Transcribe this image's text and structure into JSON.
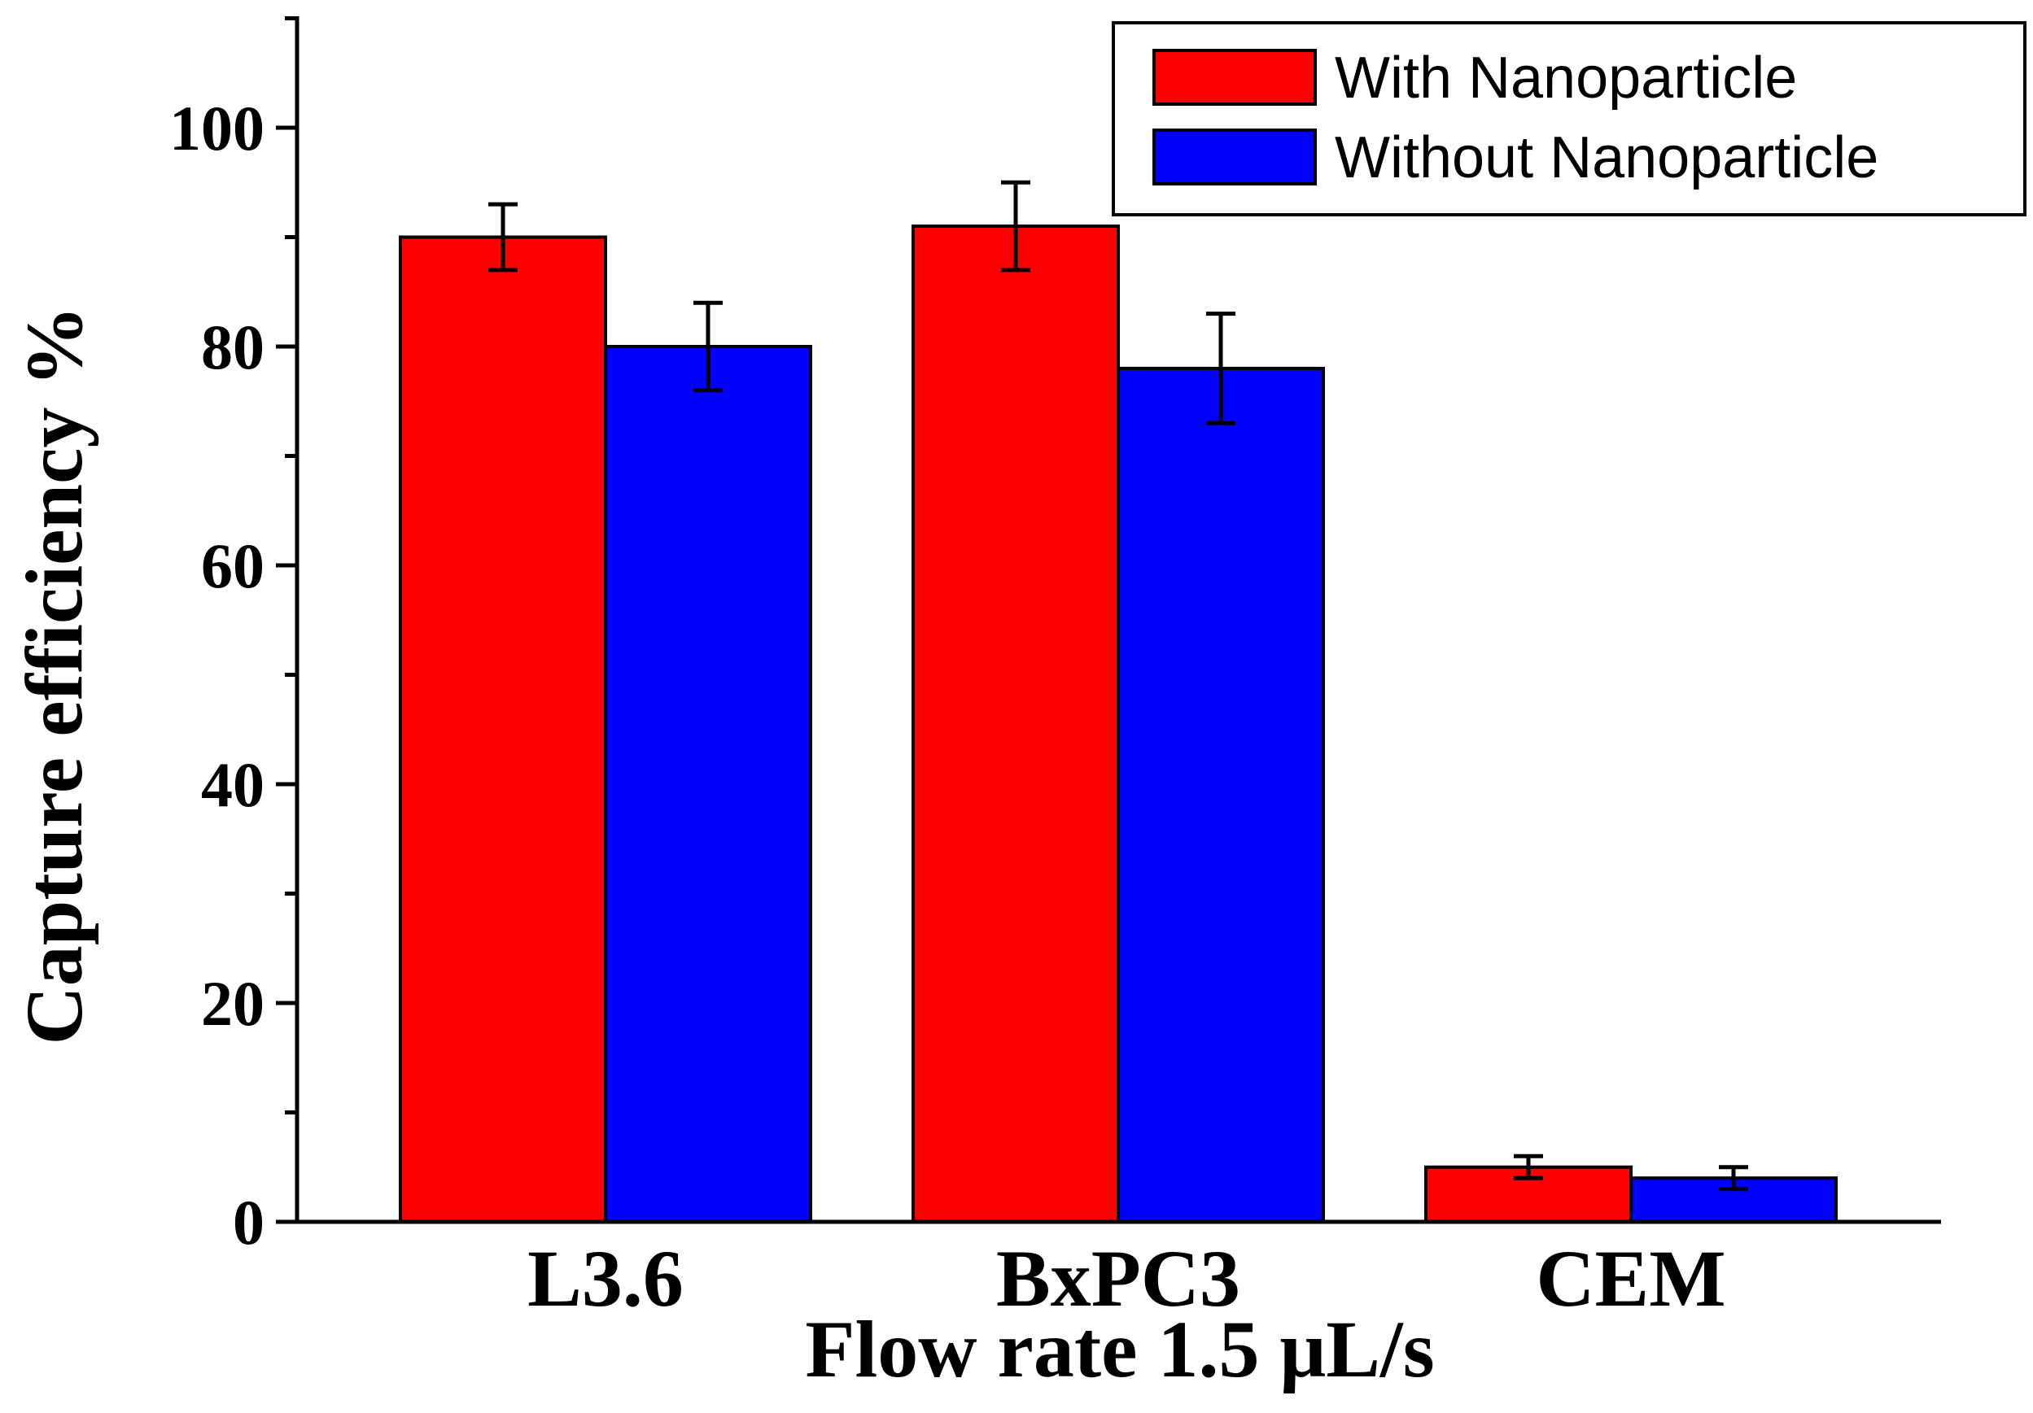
{
  "chart_data": {
    "type": "bar",
    "title": "",
    "xlabel": "Flow rate 1.5 μL/s",
    "ylabel": "Capture efficiency %",
    "categories": [
      "L3.6",
      "BxPC3",
      "CEM"
    ],
    "series": [
      {
        "name": "With Nanoparticle",
        "color": "#ff0000",
        "values": [
          90,
          91,
          5
        ],
        "errors": [
          3,
          4,
          1
        ]
      },
      {
        "name": "Without Nanoparticle",
        "color": "#0000ff",
        "values": [
          80,
          78,
          4
        ],
        "errors": [
          4,
          5,
          1
        ]
      }
    ],
    "ylim": [
      0,
      110
    ],
    "yticks": [
      0,
      20,
      40,
      60,
      80,
      100
    ],
    "grid": false,
    "legend_position": "top-right"
  }
}
